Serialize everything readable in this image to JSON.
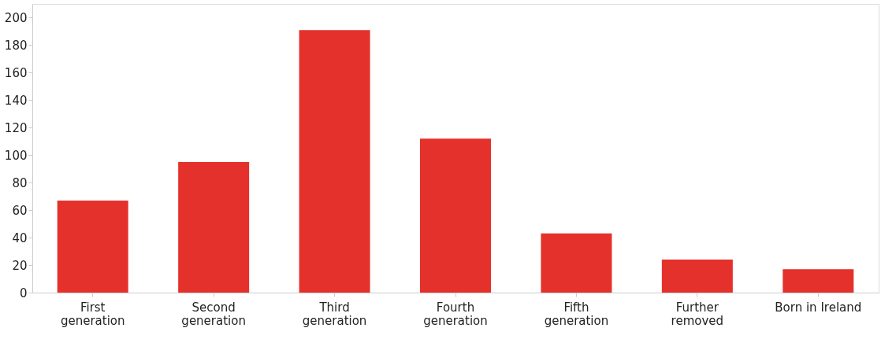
{
  "chart_data": {
    "type": "bar",
    "categories": [
      "First\ngeneration",
      "Second\ngeneration",
      "Third\ngeneration",
      "Fourth\ngeneration",
      "Fifth\ngeneration",
      "Further\nremoved",
      "Born in Ireland"
    ],
    "values": [
      67,
      95,
      191,
      112,
      43,
      24,
      17
    ],
    "color": "#e5312b",
    "ylim": [
      0,
      210
    ],
    "yticks": [
      0,
      20,
      40,
      60,
      80,
      100,
      120,
      140,
      160,
      180,
      200
    ],
    "grid": false
  }
}
